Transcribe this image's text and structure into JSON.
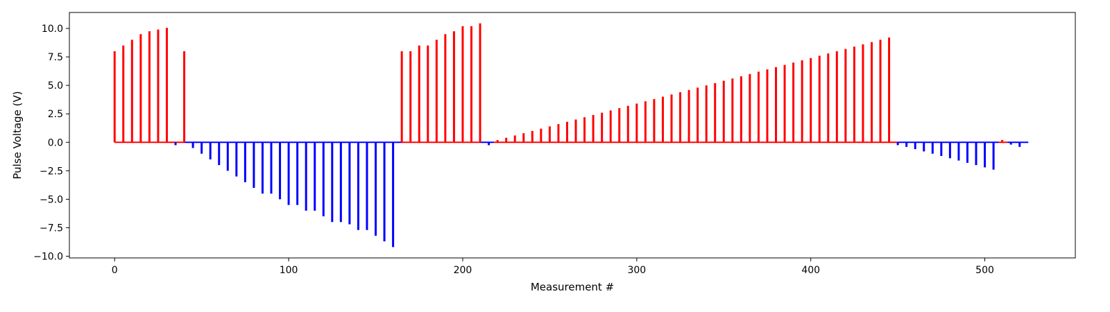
{
  "chart_data": {
    "type": "bar",
    "title": "",
    "xlabel": "Measurement #",
    "ylabel": "Pulse Voltage (V)",
    "xlim": [
      -26,
      552
    ],
    "ylim": [
      -10.15,
      11.4
    ],
    "xticks": [
      0,
      100,
      200,
      300,
      400,
      500
    ],
    "yticks": [
      -10.0,
      -7.5,
      -5.0,
      -2.5,
      0.0,
      2.5,
      5.0,
      7.5,
      10.0
    ],
    "colors": {
      "positive": "#ff0000",
      "negative": "#0000ff"
    },
    "grid": false,
    "legend": "none",
    "baseline_segments": [
      {
        "x_start": 0,
        "x_end": 40,
        "color": "#ff0000"
      },
      {
        "x_start": 40,
        "x_end": 165,
        "color": "#0000ff"
      },
      {
        "x_start": 165,
        "x_end": 210,
        "color": "#ff0000"
      },
      {
        "x_start": 210,
        "x_end": 218,
        "color": "#0000ff"
      },
      {
        "x_start": 218,
        "x_end": 450,
        "color": "#ff0000"
      },
      {
        "x_start": 450,
        "x_end": 508,
        "color": "#0000ff"
      },
      {
        "x_start": 508,
        "x_end": 513,
        "color": "#ff0000"
      },
      {
        "x_start": 513,
        "x_end": 525,
        "color": "#0000ff"
      }
    ],
    "x": [
      0,
      5,
      10,
      15,
      20,
      25,
      30,
      35,
      40,
      45,
      50,
      55,
      60,
      65,
      70,
      75,
      80,
      85,
      90,
      95,
      100,
      105,
      110,
      115,
      120,
      125,
      130,
      135,
      140,
      145,
      150,
      155,
      160,
      165,
      170,
      175,
      180,
      185,
      190,
      195,
      200,
      205,
      210,
      215,
      220,
      225,
      230,
      235,
      240,
      245,
      250,
      255,
      260,
      265,
      270,
      275,
      280,
      285,
      290,
      295,
      300,
      305,
      310,
      315,
      320,
      325,
      330,
      335,
      340,
      345,
      350,
      355,
      360,
      365,
      370,
      375,
      380,
      385,
      390,
      395,
      400,
      405,
      410,
      415,
      420,
      425,
      430,
      435,
      440,
      445,
      450,
      455,
      460,
      465,
      470,
      475,
      480,
      485,
      490,
      495,
      500,
      505,
      510,
      515,
      520
    ],
    "values": [
      8.0,
      8.5,
      9.0,
      9.5,
      9.75,
      9.9,
      10.05,
      -0.25,
      8.0,
      -0.5,
      -1.0,
      -1.5,
      -2.0,
      -2.5,
      -3.0,
      -3.5,
      -4.0,
      -4.5,
      -4.5,
      -5.0,
      -5.5,
      -5.5,
      -6.0,
      -6.0,
      -6.5,
      -7.0,
      -7.0,
      -7.2,
      -7.7,
      -7.7,
      -8.2,
      -8.7,
      -9.2,
      8.0,
      8.0,
      8.5,
      8.5,
      9.0,
      9.5,
      9.75,
      10.2,
      10.2,
      10.45,
      -0.25,
      0.2,
      0.4,
      0.6,
      0.8,
      1.0,
      1.2,
      1.4,
      1.6,
      1.8,
      2.0,
      2.2,
      2.4,
      2.6,
      2.8,
      3.0,
      3.2,
      3.4,
      3.6,
      3.8,
      4.0,
      4.2,
      4.4,
      4.6,
      4.8,
      5.0,
      5.2,
      5.4,
      5.6,
      5.8,
      6.0,
      6.2,
      6.4,
      6.6,
      6.8,
      7.0,
      7.2,
      7.4,
      7.6,
      7.8,
      8.0,
      8.2,
      8.4,
      8.6,
      8.8,
      9.0,
      9.2,
      -0.25,
      -0.4,
      -0.6,
      -0.8,
      -1.0,
      -1.2,
      -1.4,
      -1.6,
      -1.8,
      -2.0,
      -2.2,
      -2.4,
      0.2,
      -0.2,
      -0.4
    ]
  }
}
